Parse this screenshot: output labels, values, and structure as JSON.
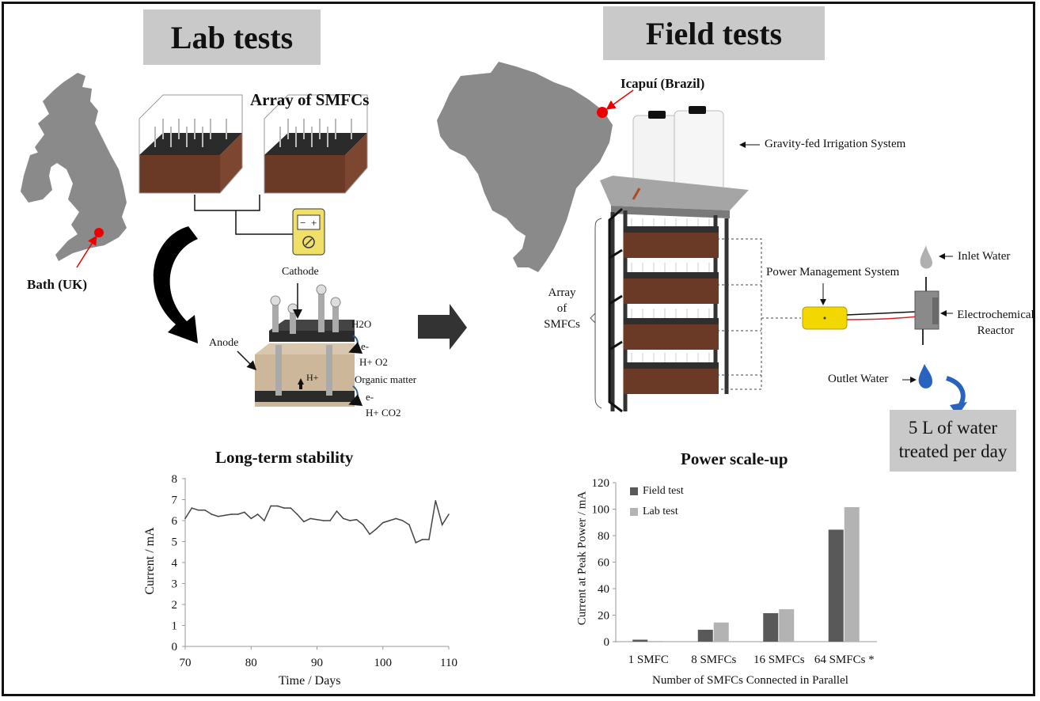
{
  "lab": {
    "title": "Lab tests",
    "location": "Bath (UK)",
    "array_label": "Array of SMFCs",
    "cell_labels": {
      "cathode": "Cathode",
      "anode": "Anode",
      "h2o": "H2O",
      "e1": "e-",
      "h_o2": "H+  O2",
      "organic": "Organic matter",
      "h_plus": "H+",
      "e2": "e-",
      "h_co2": "H+  CO2"
    }
  },
  "field": {
    "title": "Field tests",
    "location": "Icapuí (Brazil)",
    "irrigation": "Gravity-fed Irrigation System",
    "power_mgmt": "Power Management System",
    "array_label": [
      "Array",
      "of",
      "SMFCs"
    ],
    "inlet": "Inlet Water",
    "reactor": [
      "Electrochemical",
      "Reactor"
    ],
    "outlet": "Outlet Water",
    "summary": [
      "5 L of water",
      "treated per day"
    ]
  },
  "chart_data": [
    {
      "type": "line",
      "title": "Long-term stability",
      "xlabel": "Time / Days",
      "ylabel": "Current / mA",
      "xlim": [
        70,
        110
      ],
      "ylim": [
        0,
        8
      ],
      "xticks": [
        "70",
        "80",
        "90",
        "100",
        "110"
      ],
      "yticks": [
        "0",
        "1",
        "2",
        "3",
        "4",
        "5",
        "6",
        "7",
        "8"
      ],
      "x": [
        70,
        71,
        72,
        73,
        74,
        75,
        76,
        77,
        78,
        79,
        80,
        81,
        82,
        83,
        84,
        85,
        86,
        87,
        88,
        89,
        90,
        91,
        92,
        93,
        94,
        95,
        96,
        97,
        98,
        99,
        100,
        101,
        102,
        103,
        104,
        105,
        106,
        107,
        108,
        109,
        110
      ],
      "y": [
        6.1,
        6.6,
        6.5,
        6.5,
        6.3,
        6.2,
        6.25,
        6.3,
        6.3,
        6.4,
        6.1,
        6.3,
        6.0,
        6.7,
        6.7,
        6.6,
        6.6,
        6.3,
        5.95,
        6.1,
        6.05,
        6.0,
        6.0,
        6.45,
        6.1,
        6.0,
        6.05,
        5.8,
        5.35,
        5.6,
        5.9,
        6.0,
        6.1,
        6.0,
        5.8,
        4.95,
        5.1,
        5.1,
        6.95,
        5.8,
        6.3
      ]
    },
    {
      "type": "bar",
      "title": "Power scale-up",
      "xlabel": "Number of SMFCs Connected in Parallel",
      "ylabel": "Current at Peak Power / mA",
      "ylim": [
        0,
        120
      ],
      "yticks": [
        "0",
        "20",
        "40",
        "60",
        "80",
        "100",
        "120"
      ],
      "categories": [
        "1 SMFC",
        "8 SMFCs",
        "16 SMFCs",
        "64 SMFCs *"
      ],
      "series": [
        {
          "name": "Field test",
          "color": "#595959",
          "values": [
            1.5,
            9,
            21.5,
            84.5
          ]
        },
        {
          "name": "Lab test",
          "color": "#b3b3b3",
          "values": [
            0.5,
            14.5,
            24.5,
            101.5
          ]
        }
      ]
    }
  ]
}
